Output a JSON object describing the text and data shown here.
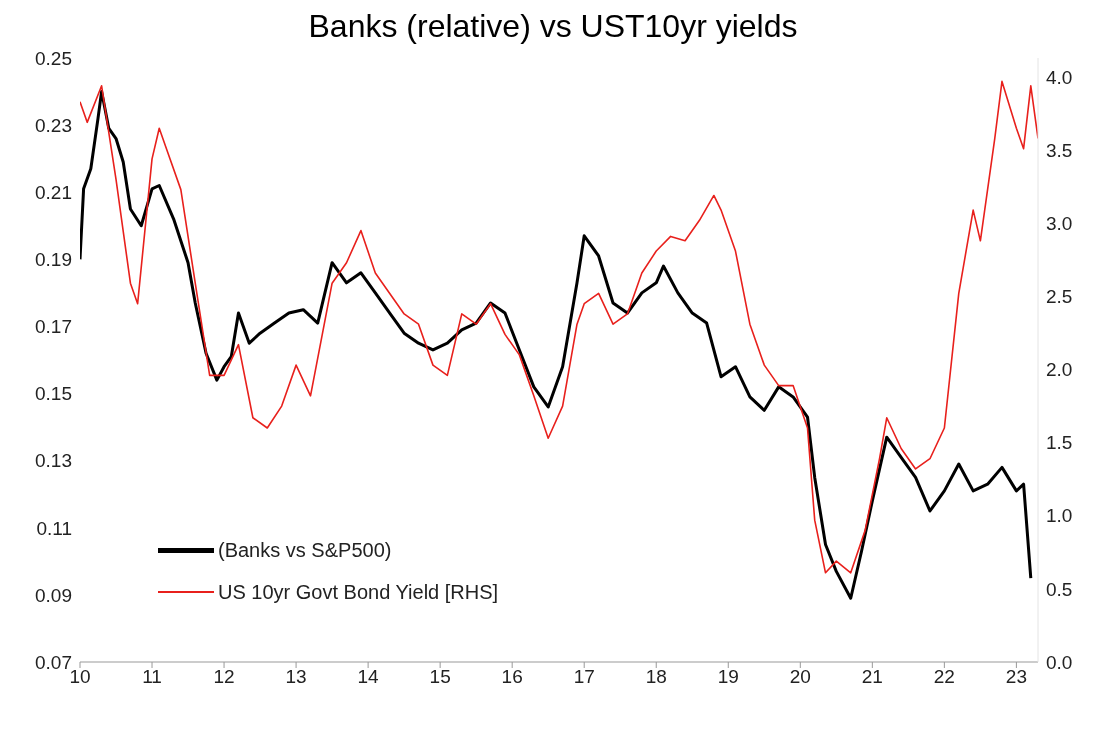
{
  "chart_data": {
    "type": "line",
    "title": "Banks (relative) vs UST10yr yields",
    "xlim": [
      10,
      23.3
    ],
    "xticks": [
      10,
      11,
      12,
      13,
      14,
      15,
      16,
      17,
      18,
      19,
      20,
      21,
      22,
      23
    ],
    "ylim": [
      0.07,
      0.25
    ],
    "yticks": [
      0.07,
      0.09,
      0.11,
      0.13,
      0.15,
      0.17,
      0.19,
      0.21,
      0.23,
      0.25
    ],
    "y2lim": [
      0,
      4.13
    ],
    "y2ticks": [
      {
        "value": 0,
        "label": "0.0"
      },
      0.5,
      {
        "value": 1,
        "label": "1.0"
      },
      1.5,
      {
        "value": 2,
        "label": "2.0"
      },
      2.5,
      {
        "value": 3,
        "label": "3.0"
      },
      3.5,
      {
        "value": 4,
        "label": "4.0"
      }
    ],
    "grid": false,
    "legend": "bottom left",
    "marker": "none",
    "line_style": "solid",
    "series": [
      {
        "name": "(Banks vs S&P500)",
        "color": "#000000",
        "x": [
          10,
          10.05,
          10.15,
          10.25,
          10.3,
          10.4,
          10.5,
          10.6,
          10.7,
          10.85,
          11,
          11.1,
          11.3,
          11.5,
          11.6,
          11.75,
          11.9,
          12,
          12.1,
          12.2,
          12.35,
          12.5,
          12.7,
          12.9,
          13.1,
          13.3,
          13.5,
          13.7,
          13.9,
          14.1,
          14.3,
          14.5,
          14.7,
          14.9,
          15.1,
          15.3,
          15.5,
          15.7,
          15.9,
          16.1,
          16.3,
          16.5,
          16.7,
          16.9,
          17,
          17.2,
          17.4,
          17.6,
          17.8,
          18,
          18.1,
          18.3,
          18.5,
          18.7,
          18.9,
          19.1,
          19.3,
          19.5,
          19.7,
          19.9,
          20.1,
          20.2,
          20.35,
          20.5,
          20.7,
          20.85,
          21,
          21.2,
          21.4,
          21.6,
          21.8,
          22,
          22.2,
          22.4,
          22.6,
          22.8,
          23,
          23.1,
          23.2
        ],
        "values": [
          0.19,
          0.211,
          0.217,
          0.232,
          0.24,
          0.229,
          0.226,
          0.219,
          0.205,
          0.2,
          0.211,
          0.212,
          0.202,
          0.189,
          0.177,
          0.162,
          0.154,
          0.158,
          0.161,
          0.174,
          0.165,
          0.168,
          0.171,
          0.174,
          0.175,
          0.171,
          0.189,
          0.183,
          0.186,
          0.18,
          0.174,
          0.168,
          0.165,
          0.163,
          0.165,
          0.169,
          0.171,
          0.177,
          0.174,
          0.163,
          0.152,
          0.146,
          0.158,
          0.183,
          0.197,
          0.191,
          0.177,
          0.174,
          0.18,
          0.183,
          0.188,
          0.18,
          0.174,
          0.171,
          0.155,
          0.158,
          0.149,
          0.145,
          0.152,
          0.149,
          0.143,
          0.125,
          0.105,
          0.097,
          0.089,
          0.103,
          0.118,
          0.137,
          0.131,
          0.125,
          0.115,
          0.121,
          0.129,
          0.121,
          0.123,
          0.128,
          0.121,
          0.123,
          0.095
        ]
      },
      {
        "name": "US 10yr Govt Bond Yield [RHS]",
        "color": "#e8201c",
        "axis": "y2",
        "x": [
          10,
          10.1,
          10.3,
          10.5,
          10.7,
          10.8,
          11,
          11.1,
          11.2,
          11.4,
          11.6,
          11.8,
          12,
          12.2,
          12.4,
          12.6,
          12.8,
          13,
          13.2,
          13.5,
          13.7,
          13.9,
          14.1,
          14.3,
          14.5,
          14.7,
          14.9,
          15.1,
          15.3,
          15.5,
          15.7,
          15.9,
          16.1,
          16.3,
          16.5,
          16.7,
          16.9,
          17,
          17.2,
          17.4,
          17.6,
          17.8,
          18,
          18.2,
          18.4,
          18.6,
          18.8,
          18.9,
          19.1,
          19.3,
          19.5,
          19.7,
          19.9,
          20.1,
          20.2,
          20.35,
          20.5,
          20.7,
          20.9,
          21.1,
          21.2,
          21.4,
          21.6,
          21.8,
          22,
          22.2,
          22.4,
          22.5,
          22.7,
          22.8,
          23,
          23.1,
          23.2,
          23.3
        ],
        "values": [
          3.83,
          3.69,
          3.94,
          3.3,
          2.59,
          2.45,
          3.44,
          3.65,
          3.51,
          3.23,
          2.59,
          1.96,
          1.96,
          2.17,
          1.67,
          1.6,
          1.75,
          2.03,
          1.82,
          2.59,
          2.73,
          2.95,
          2.66,
          2.52,
          2.38,
          2.31,
          2.03,
          1.96,
          2.38,
          2.31,
          2.45,
          2.24,
          2.1,
          1.82,
          1.53,
          1.75,
          2.31,
          2.45,
          2.52,
          2.31,
          2.38,
          2.66,
          2.81,
          2.91,
          2.88,
          3.02,
          3.19,
          3.09,
          2.81,
          2.31,
          2.03,
          1.89,
          1.89,
          1.6,
          0.97,
          0.61,
          0.69,
          0.61,
          0.9,
          1.39,
          1.67,
          1.46,
          1.32,
          1.39,
          1.6,
          2.52,
          3.09,
          2.88,
          3.58,
          3.97,
          3.65,
          3.51,
          3.94,
          3.58
        ]
      }
    ]
  }
}
